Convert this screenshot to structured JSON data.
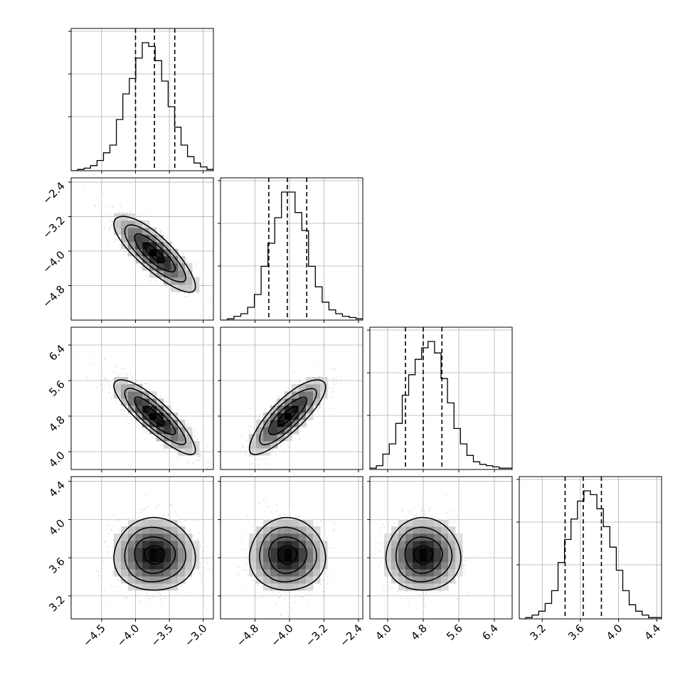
{
  "chart_data": {
    "type": "corner",
    "description_of_panels": "lower-triangle 2D density (points + gray histogram + contours), diagonal 1D histograms with dashed quantile lines",
    "grid": true,
    "colors": {
      "line": "#000000",
      "grid": "#b0b0b0",
      "points": "#bdbdbd"
    },
    "params": [
      {
        "range": [
          -4.95,
          -2.85
        ],
        "ticks": [
          -4.5,
          -4.0,
          -3.5,
          -3.0
        ],
        "tick_labels": [
          "−4.5",
          "−4.0",
          "−3.5",
          "−3.0"
        ],
        "quantiles": [
          -4.0,
          -3.72,
          -3.42
        ],
        "hist": [
          0,
          1,
          2,
          4,
          8,
          14,
          20,
          40,
          60,
          72,
          88,
          100,
          97,
          86,
          70,
          50,
          34,
          20,
          11,
          6,
          3,
          1
        ]
      },
      {
        "range": [
          -5.6,
          -2.3
        ],
        "ticks": [
          -4.8,
          -4.0,
          -3.2,
          -2.4
        ],
        "tick_labels": [
          "−4.8",
          "−4.0",
          "−3.2",
          "−2.4"
        ],
        "quantiles": [
          -4.48,
          -4.05,
          -3.6
        ],
        "hist": [
          0,
          1,
          3,
          5,
          10,
          20,
          42,
          60,
          80,
          100,
          100,
          84,
          70,
          42,
          26,
          14,
          8,
          5,
          3,
          2,
          1
        ]
      },
      {
        "range": [
          3.6,
          6.8
        ],
        "ticks": [
          4.0,
          4.8,
          5.6,
          6.4
        ],
        "tick_labels": [
          "4.0",
          "4.8",
          "5.6",
          "6.4"
        ],
        "quantiles": [
          4.4,
          4.8,
          5.22
        ],
        "hist": [
          1,
          3,
          12,
          20,
          36,
          58,
          74,
          86,
          95,
          100,
          91,
          71,
          52,
          32,
          20,
          11,
          6,
          4,
          3,
          2,
          1,
          1
        ]
      },
      {
        "range": [
          2.96,
          4.45
        ],
        "ticks": [
          3.2,
          3.6,
          4.0,
          4.4
        ],
        "tick_labels": [
          "3.2",
          "3.6",
          "4.0",
          "4.4"
        ],
        "quantiles": [
          3.44,
          3.63,
          3.82
        ],
        "hist": [
          0,
          1,
          3,
          6,
          12,
          22,
          44,
          62,
          78,
          92,
          100,
          97,
          86,
          72,
          56,
          38,
          22,
          11,
          6,
          3,
          1,
          1
        ]
      }
    ],
    "pairs": [
      {
        "row": 1,
        "col": 0,
        "center": [
          -3.72,
          -4.05
        ],
        "sd": [
          0.3,
          0.44
        ],
        "corr": -0.82
      },
      {
        "row": 2,
        "col": 0,
        "center": [
          -3.72,
          4.8
        ],
        "sd": [
          0.3,
          0.42
        ],
        "corr": -0.86
      },
      {
        "row": 2,
        "col": 1,
        "center": [
          -4.05,
          4.8
        ],
        "sd": [
          0.44,
          0.42
        ],
        "corr": 0.82
      },
      {
        "row": 3,
        "col": 0,
        "center": [
          -3.72,
          3.63
        ],
        "sd": [
          0.3,
          0.19
        ],
        "corr": 0.0
      },
      {
        "row": 3,
        "col": 1,
        "center": [
          -4.05,
          3.63
        ],
        "sd": [
          0.44,
          0.19
        ],
        "corr": 0.0
      },
      {
        "row": 3,
        "col": 2,
        "center": [
          4.8,
          3.63
        ],
        "sd": [
          0.42,
          0.19
        ],
        "corr": 0.0
      }
    ]
  }
}
